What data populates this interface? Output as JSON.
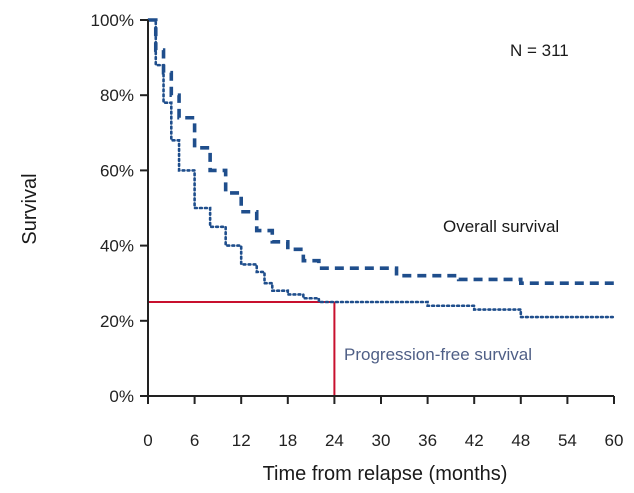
{
  "chart_data": {
    "type": "line",
    "xlabel": "Time from relapse (months)",
    "ylabel": "Survival",
    "xlim": [
      0,
      60
    ],
    "ylim": [
      0,
      100
    ],
    "x_ticks": [
      0,
      6,
      12,
      18,
      24,
      30,
      36,
      42,
      48,
      54,
      60
    ],
    "y_ticks": [
      0,
      20,
      40,
      60,
      80,
      100
    ],
    "y_tick_labels": [
      "0%",
      "20%",
      "40%",
      "60%",
      "80%",
      "100%"
    ],
    "grid": false,
    "annotations": {
      "n_label": "N = 311",
      "os_label": "Overall survival",
      "pfs_label": "Progression-free survival"
    },
    "reference_lines": {
      "x": 24,
      "y": 25,
      "color": "#c8102e"
    },
    "series": [
      {
        "key": "os",
        "style": "dashed",
        "color": "#1f4e8c",
        "x": [
          0,
          1,
          2,
          3,
          4,
          6,
          8,
          10,
          12,
          14,
          16,
          18,
          20,
          22,
          24,
          26,
          30,
          32,
          36,
          40,
          42,
          48,
          54,
          60
        ],
        "y": [
          100,
          92,
          86,
          80,
          74,
          66,
          60,
          54,
          49,
          44,
          41,
          39,
          36,
          34,
          34,
          34,
          34,
          32,
          32,
          31,
          31,
          30,
          30,
          30
        ]
      },
      {
        "key": "pfs",
        "style": "dotted",
        "color": "#1f4e8c",
        "x": [
          0,
          1,
          2,
          3,
          4,
          6,
          8,
          10,
          12,
          14,
          15,
          16,
          18,
          20,
          22,
          24,
          28,
          32,
          36,
          42,
          48,
          54,
          60
        ],
        "y": [
          100,
          88,
          78,
          68,
          60,
          50,
          45,
          40,
          35,
          33,
          30,
          28,
          27,
          26,
          25,
          25,
          25,
          25,
          24,
          23,
          21,
          21,
          21
        ]
      }
    ]
  }
}
